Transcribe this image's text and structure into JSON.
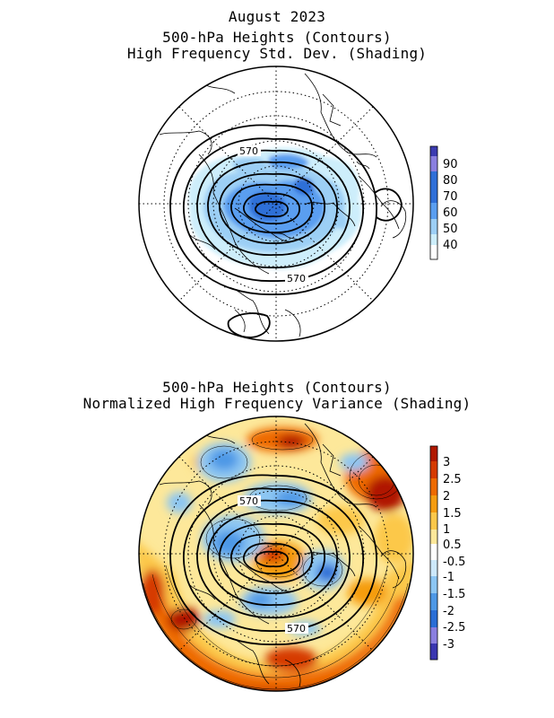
{
  "top_panel": {
    "title_lines": [
      "August 2023",
      "500-hPa Heights (Contours)",
      "High Frequency Std. Dev. (Shading)"
    ],
    "contour_labels": [
      "570",
      "570"
    ],
    "colorbar": {
      "labels": [
        "90",
        "80",
        "70",
        "60",
        "50",
        "40"
      ],
      "colors": [
        "#3b3bb0",
        "#8a7fe0",
        "#2f6fd8",
        "#5a9ef0",
        "#9ccff5",
        "#cdeefb",
        "#ffffff"
      ]
    }
  },
  "bottom_panel": {
    "title_lines": [
      "500-hPa Heights (Contours)",
      "Normalized High Frequency Variance (Shading)"
    ],
    "contour_labels": [
      "570",
      "570"
    ],
    "colorbar": {
      "labels": [
        "3",
        "2.5",
        "2",
        "1.5",
        "1",
        "0.5",
        "-0.5",
        "-1",
        "-1.5",
        "-2",
        "-2.5",
        "-3"
      ],
      "colors": [
        "#b01800",
        "#d63a00",
        "#ee6a00",
        "#f59c10",
        "#fcc84a",
        "#fde89a",
        "#ffffff",
        "#cde9fb",
        "#8cc6f3",
        "#4e98e6",
        "#2a6ed6",
        "#8a7fe0",
        "#3a36b0"
      ]
    }
  }
}
